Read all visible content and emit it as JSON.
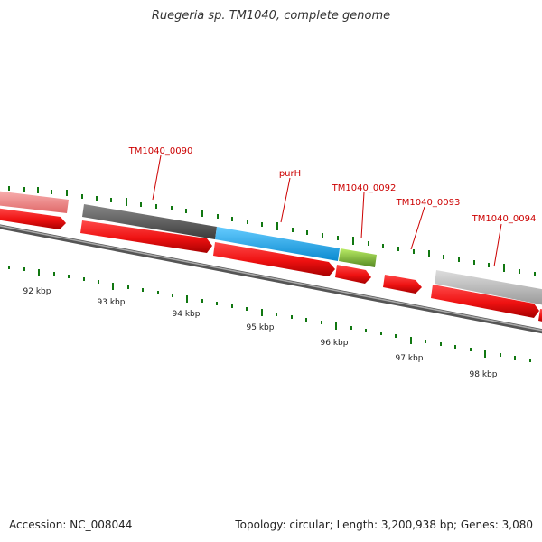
{
  "title": "Ruegeria sp. TM1040, complete genome",
  "footer": {
    "accession": "Accession: NC_008044",
    "summary": "Topology: circular; Length: 3,200,938 bp; Genes: 3,080"
  },
  "colors": {
    "cds": "#ee1111",
    "label": "#cc0000",
    "tick": "#117711",
    "backbone": "#777777"
  },
  "scale_labels": [
    "92 kbp",
    "93 kbp",
    "94 kbp",
    "95 kbp",
    "96 kbp",
    "97 kbp",
    "98 kbp"
  ],
  "genes": [
    {
      "label": "",
      "color": "#f08a8a"
    },
    {
      "label": "TM1040_0090",
      "color": "#555555"
    },
    {
      "label": "purH",
      "color": "#22aaee"
    },
    {
      "label": "TM1040_0092",
      "color": "#88cc33"
    },
    {
      "label": "TM1040_0093",
      "color": ""
    },
    {
      "label": "TM1040_0094",
      "color": "#bbbbbb"
    }
  ]
}
